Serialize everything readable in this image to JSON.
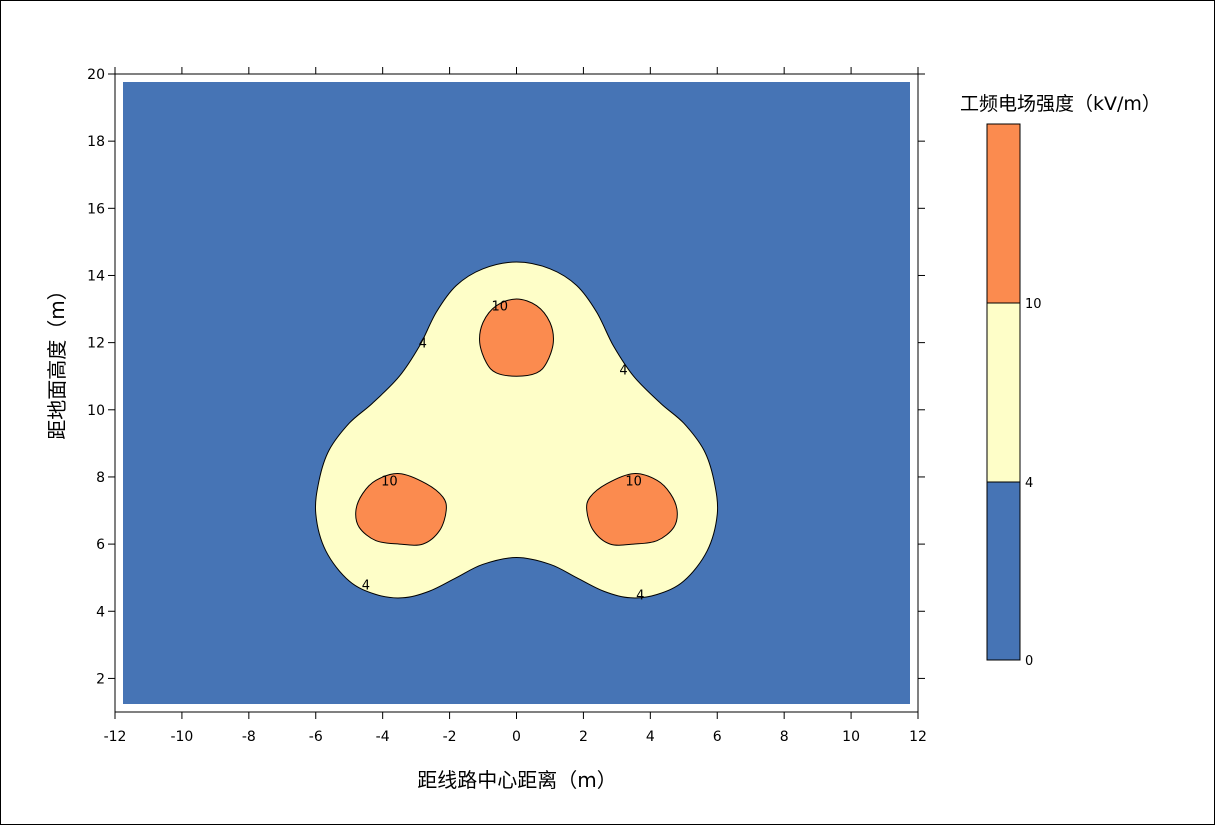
{
  "chart_data": {
    "type": "contour",
    "xlabel": "距线路中心距离（m）",
    "ylabel": "距地面高度（m）",
    "xlim": [
      -12,
      12
    ],
    "ylim": [
      1,
      20
    ],
    "x_ticks": [
      -12,
      -10,
      -8,
      -6,
      -4,
      -2,
      0,
      2,
      4,
      6,
      8,
      10,
      12
    ],
    "y_ticks": [
      2,
      4,
      6,
      8,
      10,
      12,
      14,
      16,
      18,
      20
    ],
    "levels": [
      0,
      4,
      10
    ],
    "colorbar": {
      "title": "工频电场强度（kV/m）",
      "labels": [
        "0",
        "4",
        "10"
      ],
      "colors": [
        "#4674b5",
        "#fefec8",
        "#fb8b4f"
      ],
      "position": "right"
    },
    "contour_labels": [
      {
        "text": "4",
        "x": -2.8,
        "y": 12.0
      },
      {
        "text": "4",
        "x": 3.2,
        "y": 11.2
      },
      {
        "text": "4",
        "x": -4.5,
        "y": 4.8
      },
      {
        "text": "4",
        "x": 3.7,
        "y": 4.5
      },
      {
        "text": "10",
        "x": -0.5,
        "y": 13.1
      },
      {
        "text": "10",
        "x": -3.8,
        "y": 7.9
      },
      {
        "text": "10",
        "x": 3.5,
        "y": 7.9
      }
    ],
    "conductors": [
      {
        "x": 0,
        "y": 12.0
      },
      {
        "x": -3.5,
        "y": 7.0
      },
      {
        "x": 3.5,
        "y": 7.0
      }
    ],
    "contour_4": [
      [
        0.0,
        14.4
      ],
      [
        1.0,
        14.2
      ],
      [
        1.8,
        13.7
      ],
      [
        2.4,
        12.9
      ],
      [
        2.9,
        11.9
      ],
      [
        3.5,
        11.0
      ],
      [
        4.3,
        10.2
      ],
      [
        5.0,
        9.6
      ],
      [
        5.6,
        8.8
      ],
      [
        5.9,
        7.9
      ],
      [
        6.0,
        6.9
      ],
      [
        5.7,
        5.8
      ],
      [
        5.0,
        4.9
      ],
      [
        4.2,
        4.5
      ],
      [
        3.4,
        4.4
      ],
      [
        2.6,
        4.6
      ],
      [
        1.8,
        5.0
      ],
      [
        1.0,
        5.4
      ],
      [
        0.0,
        5.6
      ],
      [
        -1.0,
        5.4
      ],
      [
        -1.8,
        5.0
      ],
      [
        -2.6,
        4.6
      ],
      [
        -3.4,
        4.4
      ],
      [
        -4.2,
        4.5
      ],
      [
        -5.0,
        4.9
      ],
      [
        -5.7,
        5.8
      ],
      [
        -6.0,
        6.9
      ],
      [
        -5.9,
        7.9
      ],
      [
        -5.6,
        8.8
      ],
      [
        -5.0,
        9.6
      ],
      [
        -4.3,
        10.2
      ],
      [
        -3.5,
        11.0
      ],
      [
        -2.9,
        11.9
      ],
      [
        -2.4,
        12.9
      ],
      [
        -1.8,
        13.7
      ],
      [
        -1.0,
        14.2
      ]
    ],
    "contour_10": [
      [
        [
          0.0,
          13.3
        ],
        [
          0.6,
          13.1
        ],
        [
          1.0,
          12.6
        ],
        [
          1.1,
          12.0
        ],
        [
          0.9,
          11.4
        ],
        [
          0.6,
          11.1
        ],
        [
          0.0,
          11.0
        ],
        [
          -0.6,
          11.1
        ],
        [
          -0.9,
          11.4
        ],
        [
          -1.1,
          12.0
        ],
        [
          -1.0,
          12.6
        ],
        [
          -0.6,
          13.1
        ]
      ],
      [
        [
          -3.5,
          8.1
        ],
        [
          -2.7,
          7.8
        ],
        [
          -2.2,
          7.4
        ],
        [
          -2.1,
          7.0
        ],
        [
          -2.3,
          6.4
        ],
        [
          -2.8,
          6.0
        ],
        [
          -3.5,
          6.0
        ],
        [
          -4.2,
          6.1
        ],
        [
          -4.7,
          6.5
        ],
        [
          -4.8,
          7.0
        ],
        [
          -4.6,
          7.5
        ],
        [
          -4.2,
          7.9
        ]
      ],
      [
        [
          3.5,
          8.1
        ],
        [
          4.2,
          7.9
        ],
        [
          4.6,
          7.5
        ],
        [
          4.8,
          7.0
        ],
        [
          4.7,
          6.5
        ],
        [
          4.2,
          6.1
        ],
        [
          3.5,
          6.0
        ],
        [
          2.8,
          6.0
        ],
        [
          2.3,
          6.4
        ],
        [
          2.1,
          7.0
        ],
        [
          2.2,
          7.4
        ],
        [
          2.7,
          7.8
        ]
      ]
    ]
  }
}
